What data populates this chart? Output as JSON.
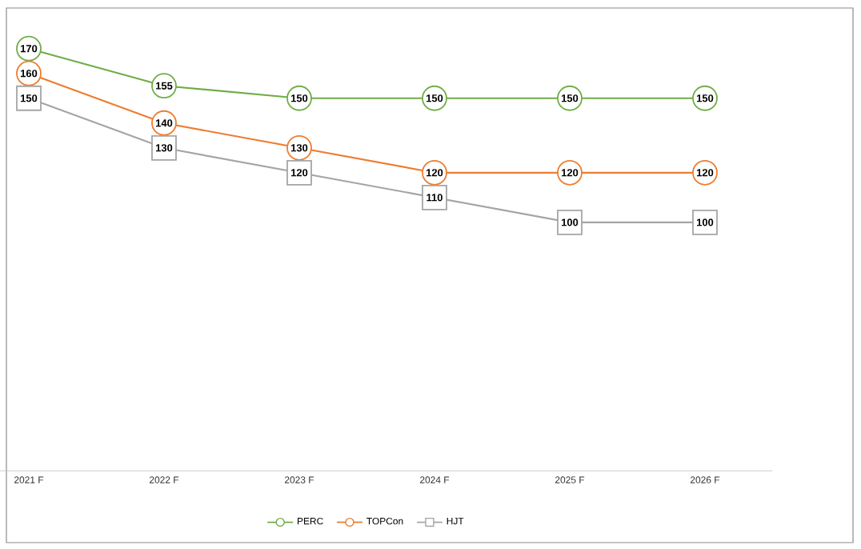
{
  "chart_data": {
    "type": "line",
    "categories": [
      "2021 F",
      "2022 F",
      "2023 F",
      "2024 F",
      "2025 F",
      "2026 F"
    ],
    "series": [
      {
        "name": "PERC",
        "color": "#70ad47",
        "marker": "circle",
        "values": [
          170,
          155,
          150,
          150,
          150,
          150
        ]
      },
      {
        "name": "TOPCon",
        "color": "#ed7d31",
        "marker": "circle",
        "values": [
          160,
          140,
          130,
          120,
          120,
          120
        ]
      },
      {
        "name": "HJT",
        "color": "#a5a5a5",
        "marker": "square",
        "values": [
          150,
          130,
          120,
          110,
          100,
          100
        ]
      }
    ],
    "data_labels": true,
    "legend": "bottom",
    "line_style": "solid"
  }
}
